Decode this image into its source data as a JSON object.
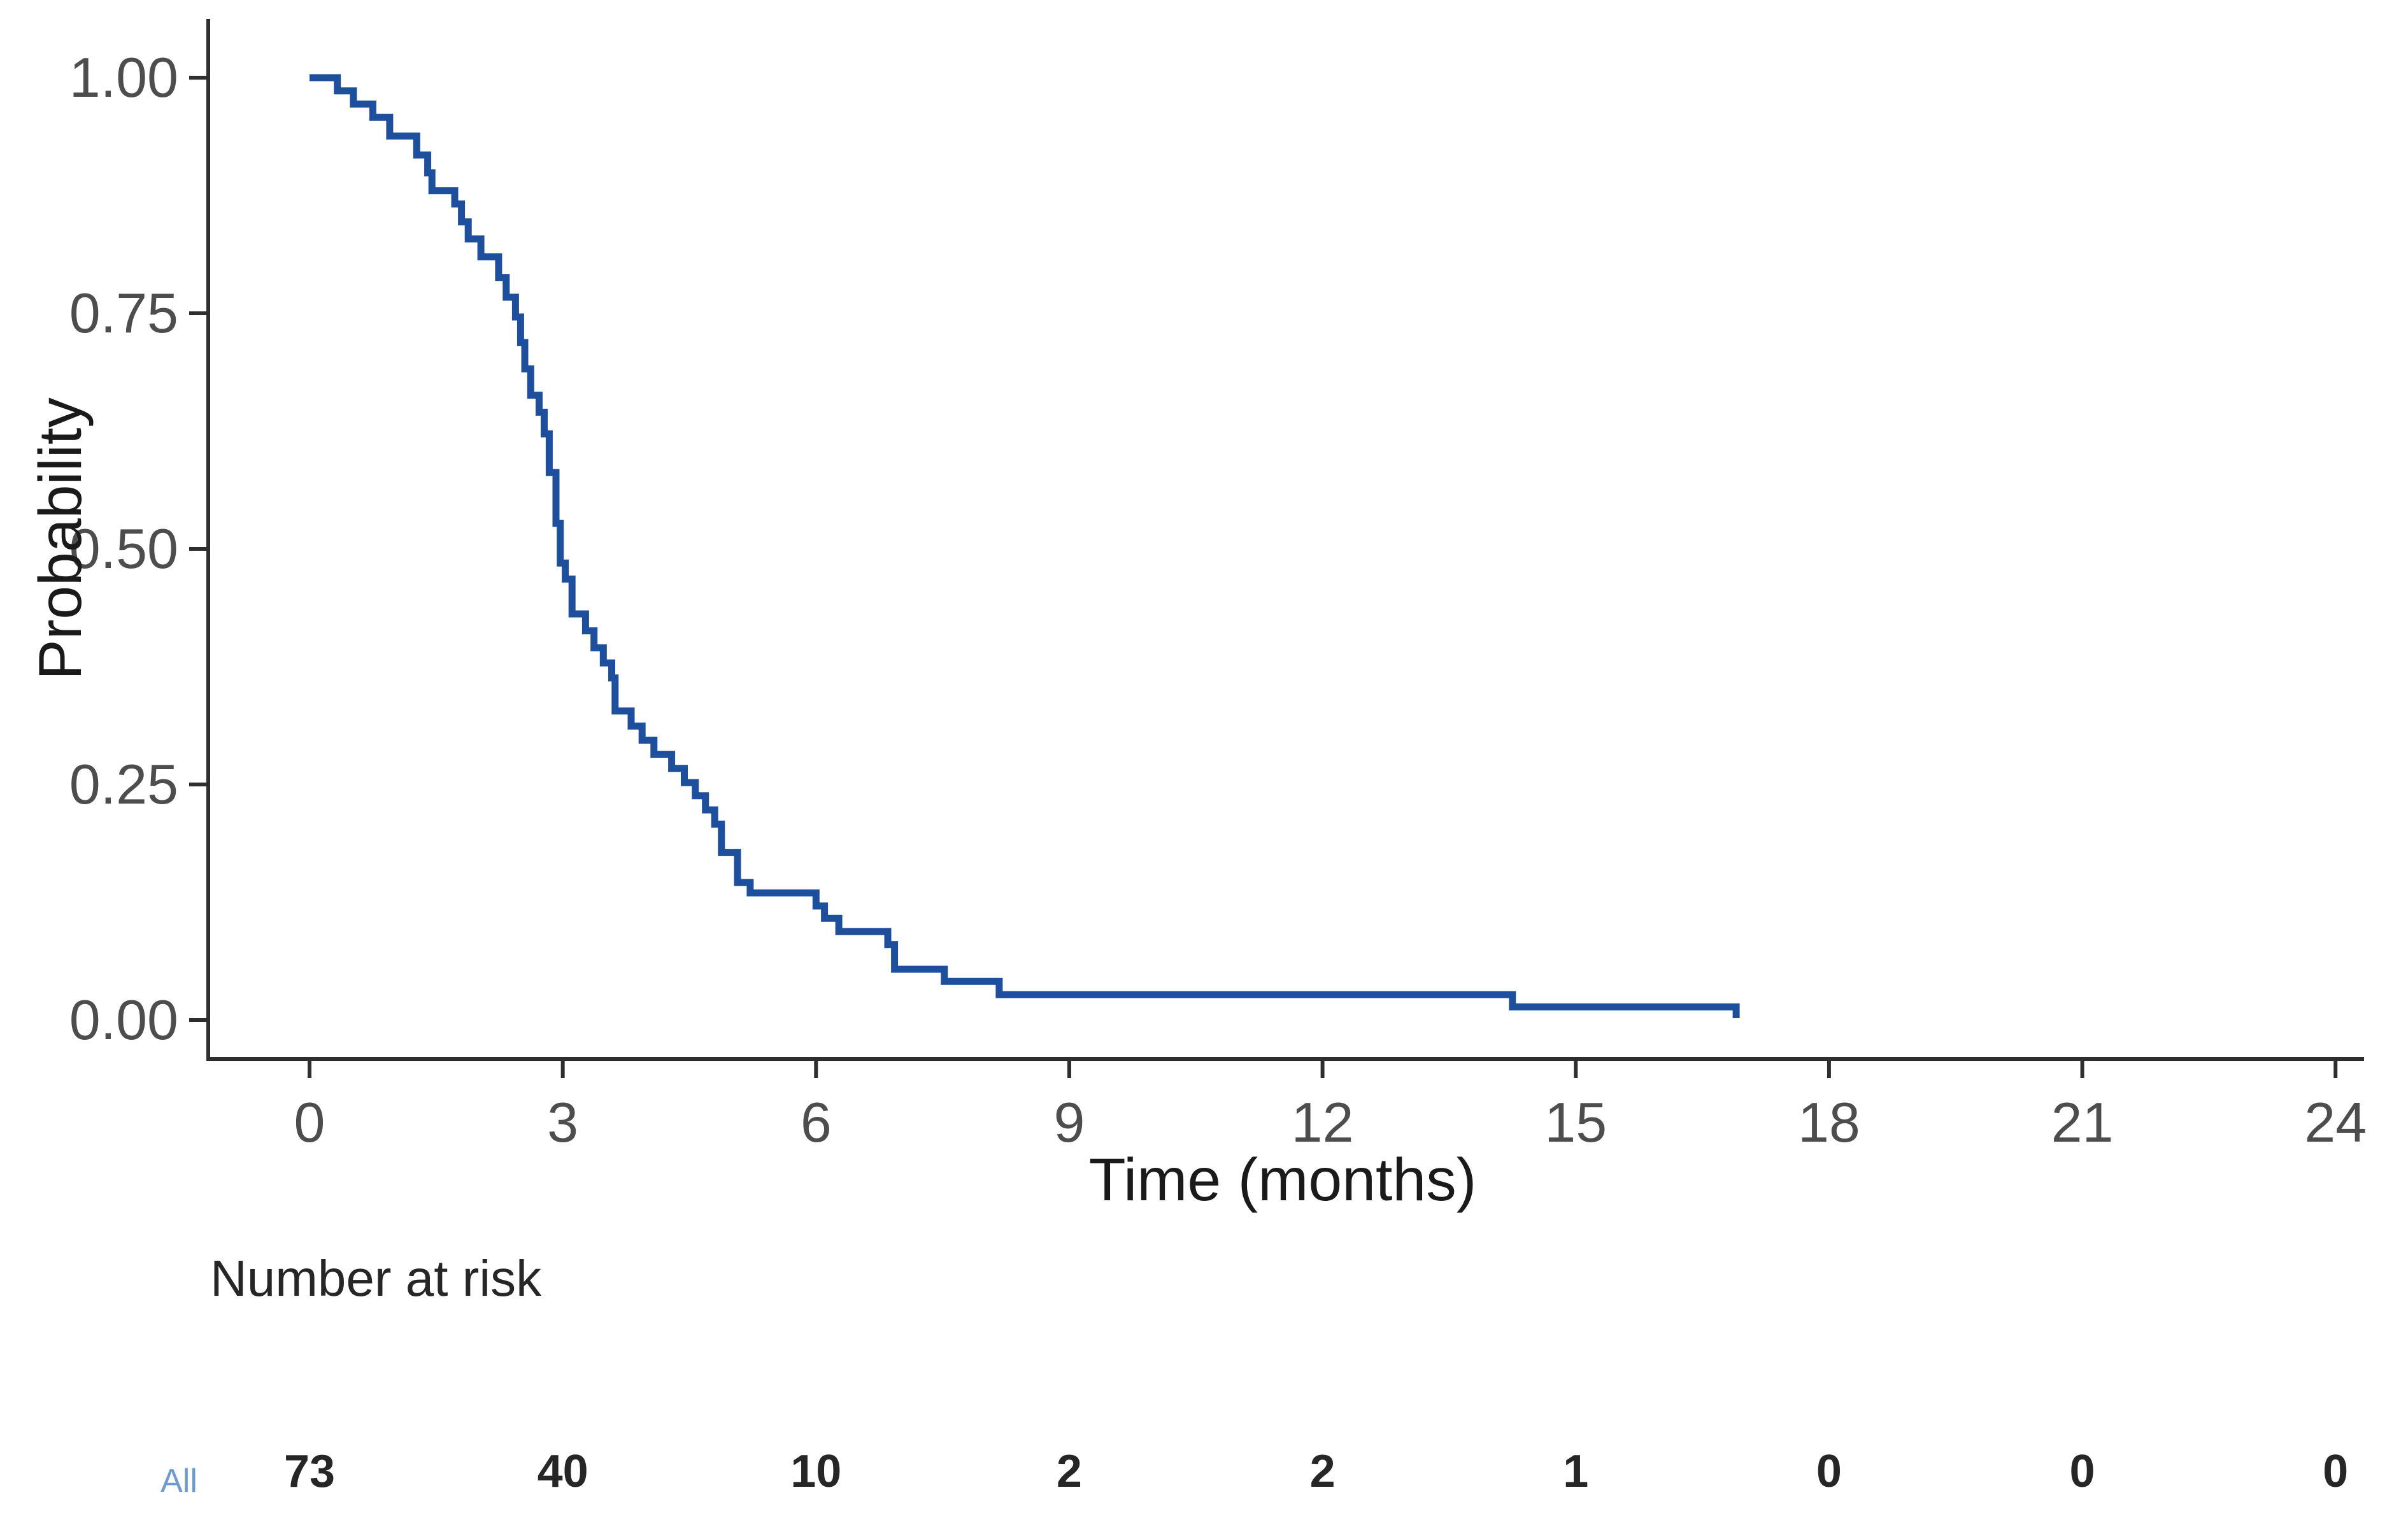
{
  "figure": {
    "background_color": "#ffffff"
  },
  "chart_data": {
    "type": "line",
    "subtype": "kaplan-meier-step-curve",
    "title": "",
    "xlabel": "Time (months)",
    "ylabel": "Probability",
    "xlim": [
      0,
      24
    ],
    "ylim": [
      0,
      1
    ],
    "grid": false,
    "legend_position": "none",
    "xticks": [
      0,
      3,
      6,
      9,
      12,
      15,
      18,
      21,
      24
    ],
    "xtick_labels": [
      "0",
      "3",
      "6",
      "9",
      "12",
      "15",
      "18",
      "21",
      "24"
    ],
    "yticks": [
      0,
      0.25,
      0.5,
      0.75,
      1.0
    ],
    "ytick_labels": [
      "0.00",
      "0.25",
      "0.50",
      "0.75",
      "1.00"
    ],
    "line_color": "#1e4f9d",
    "axis_color": "#2e2e2e",
    "tick_label_color": "#4d4d4d",
    "axis_title_color": "#1a1a1a",
    "series": [
      {
        "name": "All",
        "step": true,
        "points": [
          [
            0.0,
            1.0
          ],
          [
            0.33,
            0.986
          ],
          [
            0.52,
            0.972
          ],
          [
            0.75,
            0.958
          ],
          [
            0.95,
            0.938
          ],
          [
            1.27,
            0.918
          ],
          [
            1.4,
            0.899
          ],
          [
            1.45,
            0.88
          ],
          [
            1.72,
            0.866
          ],
          [
            1.8,
            0.847
          ],
          [
            1.88,
            0.829
          ],
          [
            2.03,
            0.81
          ],
          [
            2.24,
            0.788
          ],
          [
            2.33,
            0.767
          ],
          [
            2.44,
            0.746
          ],
          [
            2.5,
            0.719
          ],
          [
            2.55,
            0.691
          ],
          [
            2.62,
            0.663
          ],
          [
            2.72,
            0.645
          ],
          [
            2.78,
            0.622
          ],
          [
            2.84,
            0.581
          ],
          [
            2.92,
            0.527
          ],
          [
            2.97,
            0.485
          ],
          [
            3.03,
            0.468
          ],
          [
            3.11,
            0.431
          ],
          [
            3.27,
            0.413
          ],
          [
            3.37,
            0.395
          ],
          [
            3.48,
            0.379
          ],
          [
            3.58,
            0.363
          ],
          [
            3.62,
            0.328
          ],
          [
            3.81,
            0.312
          ],
          [
            3.94,
            0.297
          ],
          [
            4.08,
            0.282
          ],
          [
            4.29,
            0.267
          ],
          [
            4.44,
            0.252
          ],
          [
            4.57,
            0.238
          ],
          [
            4.69,
            0.223
          ],
          [
            4.8,
            0.208
          ],
          [
            4.88,
            0.178
          ],
          [
            5.07,
            0.146
          ],
          [
            5.22,
            0.135
          ],
          [
            6.0,
            0.121
          ],
          [
            6.1,
            0.108
          ],
          [
            6.27,
            0.094
          ],
          [
            6.85,
            0.08
          ],
          [
            6.93,
            0.054
          ],
          [
            7.52,
            0.041
          ],
          [
            8.17,
            0.027
          ],
          [
            14.25,
            0.014
          ],
          [
            16.9,
            0.002
          ]
        ]
      }
    ]
  },
  "risk_table": {
    "title": "Number at risk",
    "group_label": "All",
    "group_label_color": "#6d9bd0",
    "times": [
      0,
      3,
      6,
      9,
      12,
      15,
      18,
      21,
      24
    ],
    "counts": [
      "73",
      "40",
      "10",
      "2",
      "2",
      "1",
      "0",
      "0",
      "0"
    ]
  }
}
